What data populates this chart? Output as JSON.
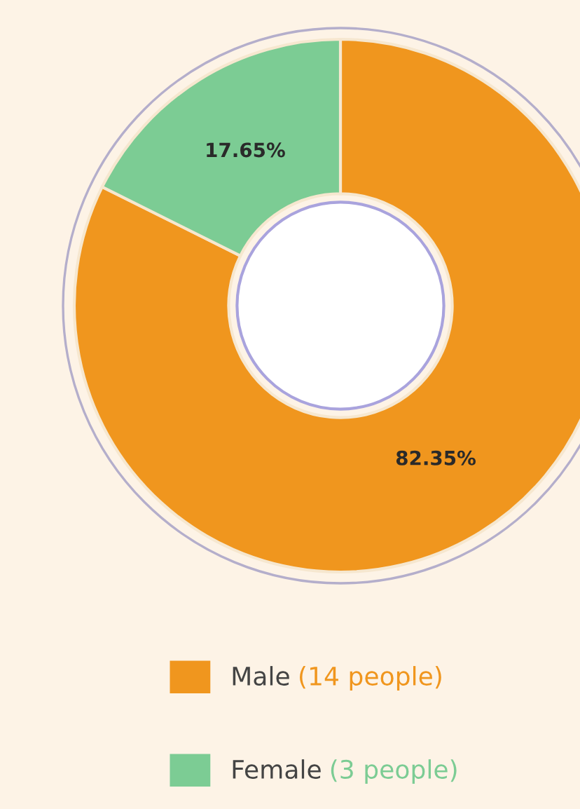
{
  "chart_data": {
    "type": "donut",
    "categories": [
      "Male",
      "Female"
    ],
    "values": [
      82.35,
      17.65
    ],
    "colors": [
      "#f0961e",
      "#7ccc94"
    ],
    "value_labels": [
      "82.35%",
      "17.65%"
    ],
    "legend": "bottom",
    "annotations": [
      "(14 people)",
      "(3 people)"
    ]
  }
}
